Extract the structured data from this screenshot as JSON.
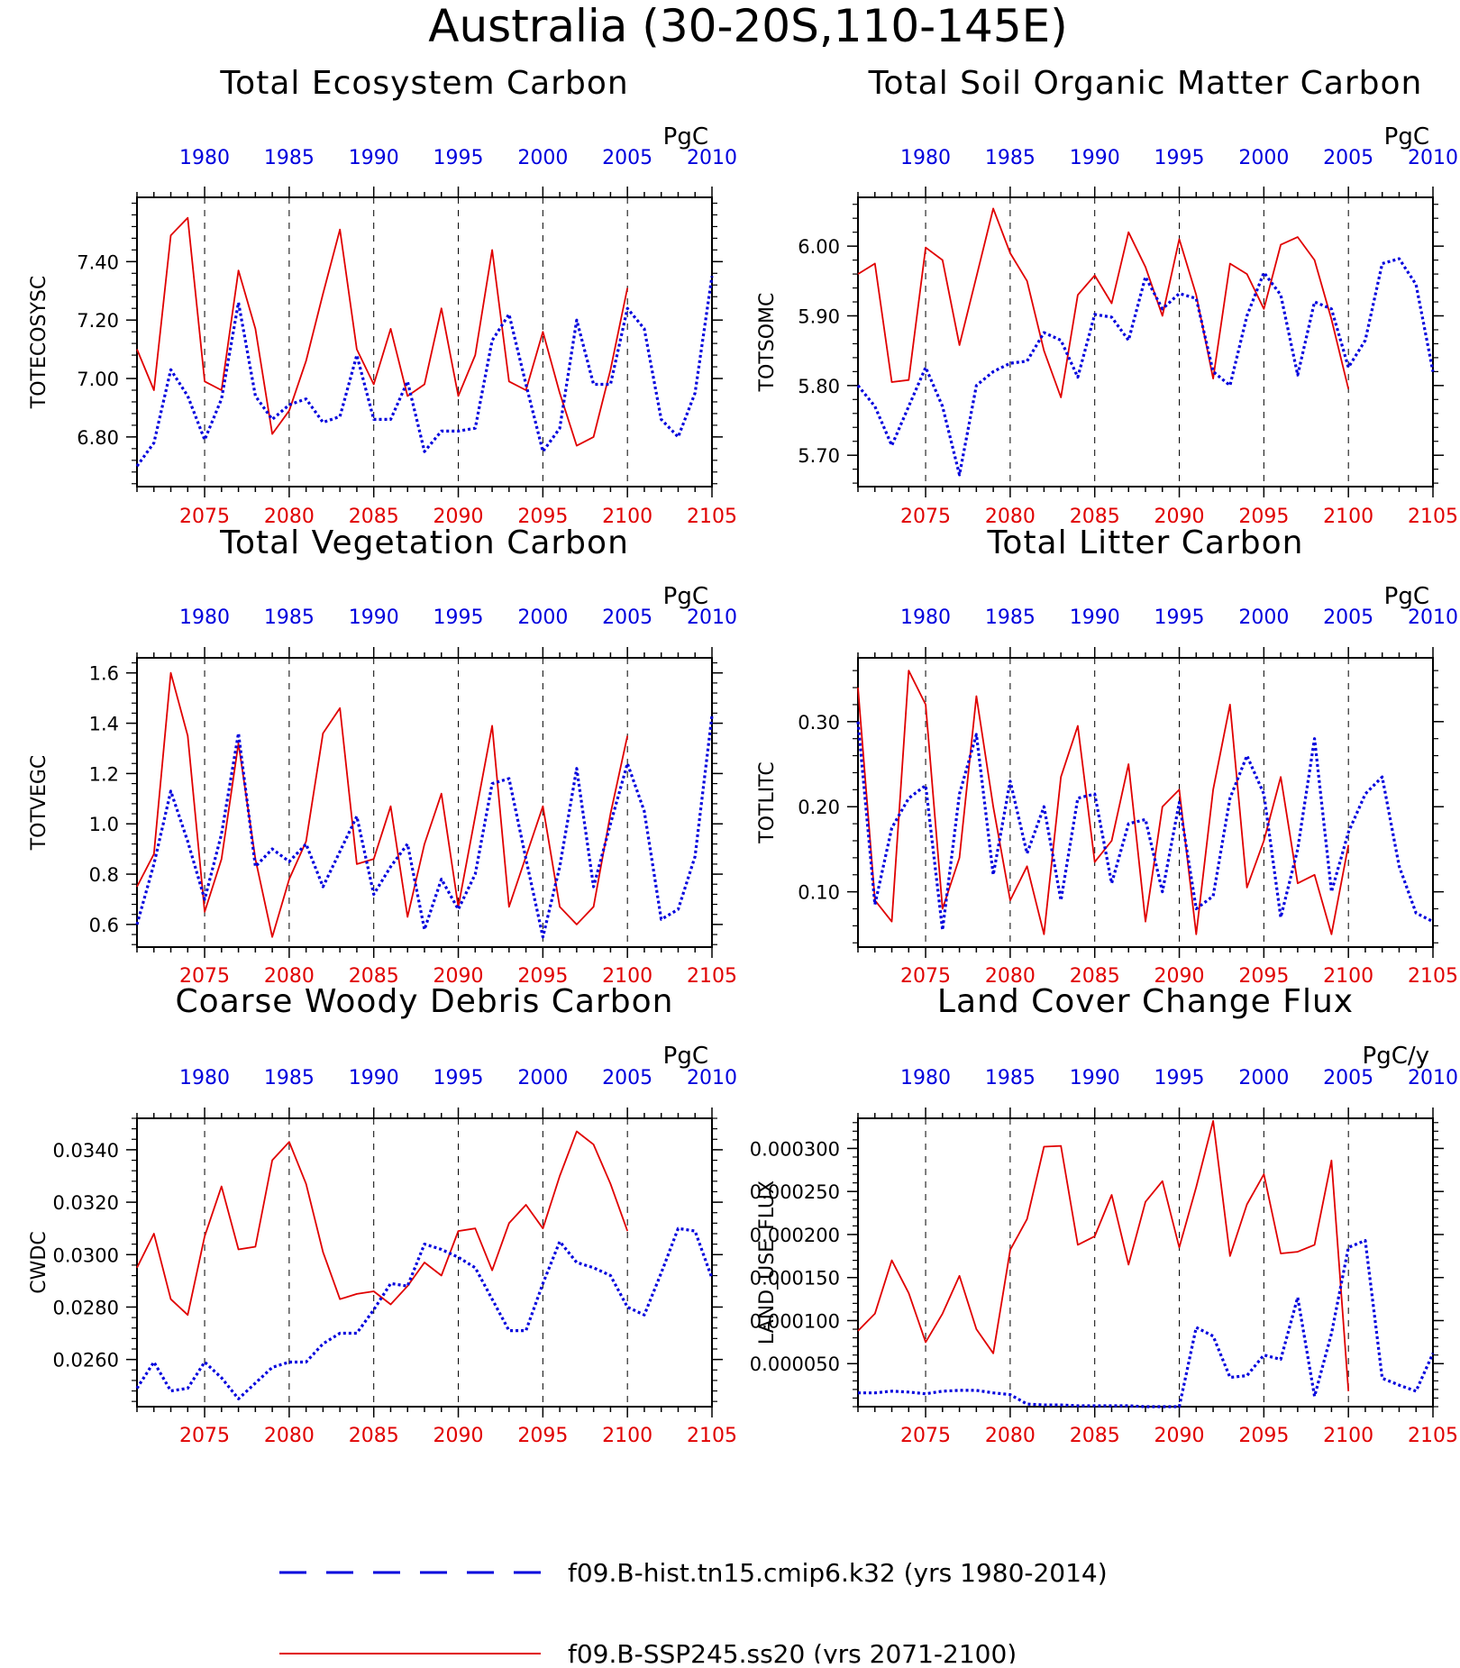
{
  "main_title": "Australia (30-20S,110-145E)",
  "legend": [
    {
      "label": "f09.B-hist.tn15.cmip6.k32 (yrs 1980-2014)",
      "color": "#0000dd",
      "style": "dashed"
    },
    {
      "label": "f09.B-SSP245.ss20 (yrs 2071-2100)",
      "color": "#e00000",
      "style": "solid"
    }
  ],
  "colors": {
    "ssp_series": "#e00000",
    "hist_series": "#0000dd"
  },
  "chart_data": [
    {
      "type": "line",
      "title": "Total Ecosystem Carbon",
      "ylabel": "TOTECOSYSC",
      "unit": "PgC",
      "x_bottom_ticks": [
        "2075",
        "2080",
        "2085",
        "2090",
        "2095",
        "2100",
        "2105"
      ],
      "x_top_ticks": [
        "1980",
        "1985",
        "1990",
        "1995",
        "2000",
        "2005",
        "2010"
      ],
      "ylim": [
        6.63,
        7.62
      ],
      "yticks": [
        6.8,
        7.0,
        7.2,
        7.4
      ],
      "ytick_labels": [
        "6.80",
        "7.00",
        "7.20",
        "7.40"
      ],
      "series": [
        {
          "name": "f09.B-SSP245.ss20",
          "x_start": 2071,
          "values": [
            7.1,
            6.96,
            7.49,
            7.55,
            6.99,
            6.96,
            7.37,
            7.17,
            6.81,
            6.89,
            7.06,
            7.29,
            7.51,
            7.1,
            6.98,
            7.17,
            6.94,
            6.98,
            7.24,
            6.94,
            7.08,
            7.44,
            6.99,
            6.96,
            7.16,
            6.95,
            6.77,
            6.8,
            7.03,
            7.31
          ]
        },
        {
          "name": "f09.B-hist.tn15.cmip6.k32",
          "x_start": 2071,
          "values": [
            6.7,
            6.78,
            7.03,
            6.94,
            6.79,
            6.93,
            7.26,
            6.94,
            6.86,
            6.91,
            6.93,
            6.85,
            6.87,
            7.08,
            6.86,
            6.86,
            6.99,
            6.75,
            6.82,
            6.82,
            6.83,
            7.13,
            7.22,
            6.98,
            6.75,
            6.83,
            7.2,
            6.98,
            6.98,
            7.24,
            7.17,
            6.86,
            6.8,
            6.95,
            7.35
          ]
        }
      ]
    },
    {
      "type": "line",
      "title": "Total Soil Organic Matter Carbon",
      "ylabel": "TOTSOMC",
      "unit": "PgC",
      "x_bottom_ticks": [
        "2075",
        "2080",
        "2085",
        "2090",
        "2095",
        "2100",
        "2105"
      ],
      "x_top_ticks": [
        "1980",
        "1985",
        "1990",
        "1995",
        "2000",
        "2005",
        "2010"
      ],
      "ylim": [
        5.655,
        6.07
      ],
      "yticks": [
        5.7,
        5.8,
        5.9,
        6.0
      ],
      "ytick_labels": [
        "5.70",
        "5.80",
        "5.90",
        "6.00"
      ],
      "series": [
        {
          "name": "f09.B-SSP245.ss20",
          "x_start": 2071,
          "values": [
            5.96,
            5.975,
            5.805,
            5.808,
            5.998,
            5.98,
            5.858,
            5.956,
            6.054,
            5.99,
            5.95,
            5.85,
            5.783,
            5.93,
            5.958,
            5.918,
            6.02,
            5.97,
            5.9,
            6.01,
            5.93,
            5.81,
            5.975,
            5.96,
            5.91,
            6.002,
            6.013,
            5.98,
            5.895,
            5.795
          ]
        },
        {
          "name": "f09.B-hist.tn15.cmip6.k32",
          "x_start": 2071,
          "values": [
            5.8,
            5.77,
            5.714,
            5.77,
            5.826,
            5.77,
            5.672,
            5.8,
            5.82,
            5.832,
            5.835,
            5.876,
            5.865,
            5.812,
            5.902,
            5.898,
            5.865,
            5.956,
            5.91,
            5.932,
            5.925,
            5.82,
            5.8,
            5.9,
            5.962,
            5.93,
            5.815,
            5.92,
            5.91,
            5.826,
            5.865,
            5.975,
            5.982,
            5.945,
            5.82
          ]
        }
      ]
    },
    {
      "type": "line",
      "title": "Total Vegetation Carbon",
      "ylabel": "TOTVEGC",
      "unit": "PgC",
      "x_bottom_ticks": [
        "2075",
        "2080",
        "2085",
        "2090",
        "2095",
        "2100",
        "2105"
      ],
      "x_top_ticks": [
        "1980",
        "1985",
        "1990",
        "1995",
        "2000",
        "2005",
        "2010"
      ],
      "ylim": [
        0.51,
        1.66
      ],
      "yticks": [
        0.6,
        0.8,
        1.0,
        1.2,
        1.4,
        1.6
      ],
      "ytick_labels": [
        "0.6",
        "0.8",
        "1.0",
        "1.2",
        "1.4",
        "1.6"
      ],
      "series": [
        {
          "name": "f09.B-SSP245.ss20",
          "x_start": 2071,
          "values": [
            0.75,
            0.88,
            1.6,
            1.35,
            0.65,
            0.86,
            1.32,
            0.86,
            0.55,
            0.78,
            0.93,
            1.36,
            1.46,
            0.84,
            0.86,
            1.07,
            0.63,
            0.92,
            1.12,
            0.67,
            1.03,
            1.39,
            0.67,
            0.87,
            1.07,
            0.67,
            0.6,
            0.67,
            1.04,
            1.35
          ]
        },
        {
          "name": "f09.B-hist.tn15.cmip6.k32",
          "x_start": 2071,
          "values": [
            0.6,
            0.84,
            1.13,
            0.93,
            0.7,
            0.96,
            1.36,
            0.83,
            0.9,
            0.85,
            0.92,
            0.75,
            0.89,
            1.03,
            0.72,
            0.83,
            0.92,
            0.58,
            0.78,
            0.66,
            0.8,
            1.16,
            1.18,
            0.86,
            0.55,
            0.83,
            1.22,
            0.75,
            1.0,
            1.24,
            1.05,
            0.62,
            0.66,
            0.87,
            1.43
          ]
        }
      ]
    },
    {
      "type": "line",
      "title": "Total Litter Carbon",
      "ylabel": "TOTLITC",
      "unit": "PgC",
      "x_bottom_ticks": [
        "2075",
        "2080",
        "2085",
        "2090",
        "2095",
        "2100",
        "2105"
      ],
      "x_top_ticks": [
        "1980",
        "1985",
        "1990",
        "1995",
        "2000",
        "2005",
        "2010"
      ],
      "ylim": [
        0.035,
        0.375
      ],
      "yticks": [
        0.1,
        0.2,
        0.3
      ],
      "ytick_labels": [
        "0.10",
        "0.20",
        "0.30"
      ],
      "series": [
        {
          "name": "f09.B-SSP245.ss20",
          "x_start": 2071,
          "values": [
            0.34,
            0.09,
            0.065,
            0.36,
            0.32,
            0.08,
            0.14,
            0.33,
            0.2,
            0.09,
            0.13,
            0.05,
            0.235,
            0.295,
            0.135,
            0.16,
            0.25,
            0.065,
            0.2,
            0.22,
            0.05,
            0.22,
            0.32,
            0.105,
            0.16,
            0.235,
            0.11,
            0.12,
            0.05,
            0.155
          ]
        },
        {
          "name": "f09.B-hist.tn15.cmip6.k32",
          "x_start": 2071,
          "values": [
            0.3,
            0.085,
            0.175,
            0.21,
            0.225,
            0.055,
            0.215,
            0.285,
            0.12,
            0.23,
            0.145,
            0.2,
            0.09,
            0.21,
            0.215,
            0.11,
            0.18,
            0.185,
            0.1,
            0.205,
            0.08,
            0.095,
            0.21,
            0.26,
            0.215,
            0.07,
            0.15,
            0.28,
            0.1,
            0.17,
            0.215,
            0.235,
            0.13,
            0.075,
            0.065
          ]
        }
      ]
    },
    {
      "type": "line",
      "title": "Coarse Woody Debris Carbon",
      "ylabel": "CWDC",
      "unit": "PgC",
      "x_bottom_ticks": [
        "2075",
        "2080",
        "2085",
        "2090",
        "2095",
        "2100",
        "2105"
      ],
      "x_top_ticks": [
        "1980",
        "1985",
        "1990",
        "1995",
        "2000",
        "2005",
        "2010"
      ],
      "ylim": [
        0.0242,
        0.0352
      ],
      "yticks": [
        0.026,
        0.028,
        0.03,
        0.032,
        0.034
      ],
      "ytick_labels": [
        "0.0260",
        "0.0280",
        "0.0300",
        "0.0320",
        "0.0340"
      ],
      "series": [
        {
          "name": "f09.B-SSP245.ss20",
          "x_start": 2071,
          "values": [
            0.0295,
            0.0308,
            0.0283,
            0.0277,
            0.0307,
            0.0326,
            0.0302,
            0.0303,
            0.0336,
            0.0343,
            0.0327,
            0.0301,
            0.0283,
            0.0285,
            0.0286,
            0.0281,
            0.0288,
            0.0297,
            0.0292,
            0.0309,
            0.031,
            0.0294,
            0.0312,
            0.0319,
            0.031,
            0.033,
            0.0347,
            0.0342,
            0.0327,
            0.0309
          ]
        },
        {
          "name": "f09.B-hist.tn15.cmip6.k32",
          "x_start": 2071,
          "values": [
            0.0249,
            0.0259,
            0.0248,
            0.0249,
            0.0259,
            0.0253,
            0.0245,
            0.0251,
            0.0257,
            0.0259,
            0.0259,
            0.0266,
            0.027,
            0.027,
            0.0279,
            0.0289,
            0.0288,
            0.0304,
            0.0302,
            0.0299,
            0.0295,
            0.0283,
            0.0271,
            0.0271,
            0.0289,
            0.0305,
            0.0297,
            0.0295,
            0.0292,
            0.028,
            0.0277,
            0.0293,
            0.031,
            0.0309,
            0.0291
          ]
        }
      ]
    },
    {
      "type": "line",
      "title": "Land Cover Change Flux",
      "ylabel": "LAND_USE_FLUX",
      "unit": "PgC/y",
      "x_bottom_ticks": [
        "2075",
        "2080",
        "2085",
        "2090",
        "2095",
        "2100",
        "2105"
      ],
      "x_top_ticks": [
        "1980",
        "1985",
        "1990",
        "1995",
        "2000",
        "2005",
        "2010"
      ],
      "ylim": [
        0.0,
        0.000335
      ],
      "yticks": [
        5e-05,
        0.0001,
        0.00015,
        0.0002,
        0.00025,
        0.0003
      ],
      "ytick_labels": [
        "0.000050",
        "0.000100",
        "0.000150",
        "0.000200",
        "0.000250",
        "0.000300"
      ],
      "series": [
        {
          "name": "f09.B-SSP245.ss20",
          "x_start": 2071,
          "values": [
            8.8e-05,
            0.000108,
            0.00017,
            0.000132,
            7.5e-05,
            0.000108,
            0.000152,
            9e-05,
            6.2e-05,
            0.000182,
            0.000218,
            0.000302,
            0.000303,
            0.000188,
            0.000198,
            0.000246,
            0.000165,
            0.000238,
            0.000262,
            0.000185,
            0.000255,
            0.000332,
            0.000175,
            0.000235,
            0.00027,
            0.000178,
            0.00018,
            0.000188,
            0.000286,
            1.8e-05
          ]
        },
        {
          "name": "f09.B-hist.tn15.cmip6.k32",
          "x_start": 2071,
          "values": [
            1.6e-05,
            1.6e-05,
            1.8e-05,
            1.7e-05,
            1.5e-05,
            1.8e-05,
            1.9e-05,
            1.9e-05,
            1.6e-05,
            1.4e-05,
            3e-06,
            2e-06,
            2e-06,
            1e-06,
            1e-06,
            1e-06,
            1e-06,
            0.0,
            0.0,
            0.0,
            9.2e-05,
            8.2e-05,
            3.4e-05,
            3.6e-05,
            6e-05,
            5.5e-05,
            0.000127,
            1.2e-05,
            8.5e-05,
            0.000185,
            0.000193,
            3.3e-05,
            2.5e-05,
            1.8e-05,
            6.2e-05
          ]
        }
      ]
    }
  ]
}
